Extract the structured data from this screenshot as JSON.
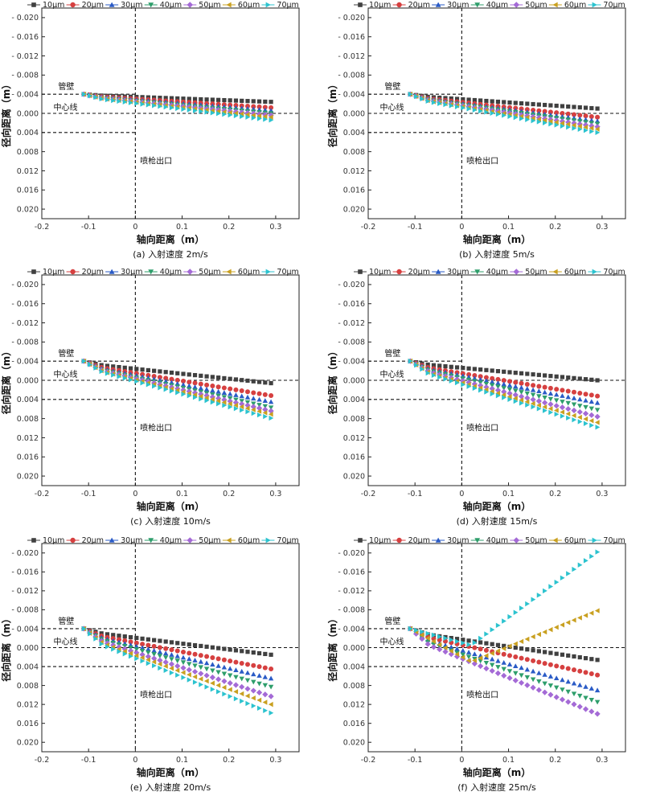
{
  "legend_labels": [
    "10μm",
    "20μm",
    "30μm",
    "40μm",
    "50μm",
    "60μm",
    "70μm"
  ],
  "series_colors": [
    "#404040",
    "#d64040",
    "#2a5bc6",
    "#2e9e6b",
    "#a46ad6",
    "#c9a020",
    "#2cc3cf"
  ],
  "series_markers": [
    "square",
    "circle",
    "triangle-up",
    "triangle-down",
    "diamond",
    "triangle-left",
    "triangle-right"
  ],
  "chart_data": [
    {
      "type": "scatter",
      "caption": "(a) 入射速度 2m/s",
      "xlabel": "轴向距离（m）",
      "ylabel": "径向距离（m）",
      "xlim": [
        -0.2,
        0.35
      ],
      "ylim": [
        -0.022,
        0.022
      ],
      "xticks": [
        -0.2,
        -0.1,
        0,
        0.1,
        0.2,
        0.3
      ],
      "xtick_labels": [
        "-0.2",
        "-0.1",
        "0",
        "0.1",
        "0.2",
        "0.3"
      ],
      "yticks": [
        -0.02,
        -0.016,
        -0.012,
        -0.008,
        -0.004,
        0.0,
        0.004,
        0.008,
        0.012,
        0.016,
        0.02
      ],
      "ytick_labels": [
        "- 0.020",
        "- 0.016",
        "- 0.012",
        "- 0.008",
        "- 0.004",
        "0.000",
        "0.004",
        "0.008",
        "0.012",
        "0.016",
        "0.020"
      ],
      "annotations": {
        "wall": "管壁",
        "centerline": "中心线",
        "nozzle_exit": "喷枪出口"
      },
      "wall_y": [
        -0.004,
        0.004
      ],
      "start": [
        -0.11,
        -0.004
      ],
      "series": [
        {
          "name": "10μm",
          "end_y": -0.0024
        },
        {
          "name": "20μm",
          "end_y": -0.0012
        },
        {
          "name": "30μm",
          "end_y": -0.0006
        },
        {
          "name": "40μm",
          "end_y": 0.0
        },
        {
          "name": "50μm",
          "end_y": 0.0004
        },
        {
          "name": "60μm",
          "end_y": 0.0008
        },
        {
          "name": "70μm",
          "end_y": 0.0014
        }
      ]
    },
    {
      "type": "scatter",
      "caption": "(b) 入射速度 5m/s",
      "xlabel": "轴向距离（m）",
      "ylabel": "径向距离（m）",
      "xlim": [
        -0.2,
        0.35
      ],
      "ylim": [
        -0.022,
        0.022
      ],
      "xticks": [
        -0.2,
        -0.1,
        0,
        0.1,
        0.2,
        0.3
      ],
      "xtick_labels": [
        "-0.2",
        "-0.1",
        "0",
        "0.1",
        "0.2",
        "0.3"
      ],
      "yticks": [
        -0.02,
        -0.016,
        -0.012,
        -0.008,
        -0.004,
        0.0,
        0.004,
        0.008,
        0.012,
        0.016,
        0.02
      ],
      "ytick_labels": [
        "- 0.020",
        "- 0.016",
        "- 0.012",
        "- 0.008",
        "- 0.004",
        "0.000",
        "0.004",
        "0.008",
        "0.012",
        "0.016",
        "0.020"
      ],
      "annotations": {
        "wall": "管壁",
        "centerline": "中心线",
        "nozzle_exit": "喷枪出口"
      },
      "wall_y": [
        -0.004,
        0.004
      ],
      "start": [
        -0.11,
        -0.004
      ],
      "series": [
        {
          "name": "10μm",
          "end_y": -0.001
        },
        {
          "name": "20μm",
          "end_y": 0.0008
        },
        {
          "name": "30μm",
          "end_y": 0.0016
        },
        {
          "name": "40μm",
          "end_y": 0.0022
        },
        {
          "name": "50μm",
          "end_y": 0.0028
        },
        {
          "name": "60μm",
          "end_y": 0.0033
        },
        {
          "name": "70μm",
          "end_y": 0.004
        }
      ]
    },
    {
      "type": "scatter",
      "caption": "(c) 入射速度 10m/s",
      "xlabel": "轴向距离（m）",
      "ylabel": "径向距离（m）",
      "xlim": [
        -0.2,
        0.35
      ],
      "ylim": [
        -0.022,
        0.022
      ],
      "xticks": [
        -0.2,
        -0.1,
        0,
        0.1,
        0.2,
        0.3
      ],
      "xtick_labels": [
        "-0.2",
        "-0.1",
        "0",
        "0.1",
        "0.2",
        "0.3"
      ],
      "yticks": [
        -0.02,
        -0.016,
        -0.012,
        -0.008,
        -0.004,
        0.0,
        0.004,
        0.008,
        0.012,
        0.016,
        0.02
      ],
      "ytick_labels": [
        "- 0.020",
        "- 0.016",
        "- 0.012",
        "- 0.008",
        "- 0.004",
        "0.000",
        "0.004",
        "0.008",
        "0.012",
        "0.016",
        "0.020"
      ],
      "annotations": {
        "wall": "管壁",
        "centerline": "中心线",
        "nozzle_exit": "喷枪出口"
      },
      "wall_y": [
        -0.004,
        0.004
      ],
      "start": [
        -0.11,
        -0.004
      ],
      "series": [
        {
          "name": "10μm",
          "end_y": 0.0006
        },
        {
          "name": "20μm",
          "end_y": 0.0032
        },
        {
          "name": "30μm",
          "end_y": 0.0045
        },
        {
          "name": "40μm",
          "end_y": 0.0057
        },
        {
          "name": "50μm",
          "end_y": 0.0064
        },
        {
          "name": "60μm",
          "end_y": 0.0071
        },
        {
          "name": "70μm",
          "end_y": 0.0079
        }
      ]
    },
    {
      "type": "scatter",
      "caption": "(d) 入射速度 15m/s",
      "xlabel": "轴向距离（m）",
      "ylabel": "径向距离（m）",
      "xlim": [
        -0.2,
        0.35
      ],
      "ylim": [
        -0.022,
        0.022
      ],
      "xticks": [
        -0.2,
        -0.1,
        0,
        0.1,
        0.2,
        0.3
      ],
      "xtick_labels": [
        "-0.2",
        "-0.1",
        "0",
        "0.1",
        "0.2",
        "0.3"
      ],
      "yticks": [
        -0.02,
        -0.016,
        -0.012,
        -0.008,
        -0.004,
        0.0,
        0.004,
        0.008,
        0.012,
        0.016,
        0.02
      ],
      "ytick_labels": [
        "- 0.020",
        "- 0.016",
        "- 0.012",
        "- 0.008",
        "- 0.004",
        "0.000",
        "0.004",
        "0.008",
        "0.012",
        "0.016",
        "0.020"
      ],
      "annotations": {
        "wall": "管壁",
        "centerline": "中心线",
        "nozzle_exit": "喷枪出口"
      },
      "wall_y": [
        -0.004,
        0.004
      ],
      "start": [
        -0.11,
        -0.004
      ],
      "series": [
        {
          "name": "10μm",
          "end_y": 0.0
        },
        {
          "name": "20μm",
          "end_y": 0.0033
        },
        {
          "name": "30μm",
          "end_y": 0.0047
        },
        {
          "name": "40μm",
          "end_y": 0.0062
        },
        {
          "name": "50μm",
          "end_y": 0.0076
        },
        {
          "name": "60μm",
          "end_y": 0.0088
        },
        {
          "name": "70μm",
          "end_y": 0.0098
        }
      ]
    },
    {
      "type": "scatter",
      "caption": "(e) 入射速度 20m/s",
      "xlabel": "轴向距离（m）",
      "ylabel": "径向距离（m）",
      "xlim": [
        -0.2,
        0.35
      ],
      "ylim": [
        -0.022,
        0.022
      ],
      "xticks": [
        -0.2,
        -0.1,
        0,
        0.1,
        0.2,
        0.3
      ],
      "xtick_labels": [
        "-0.2",
        "-0.1",
        "0",
        "0.1",
        "0.2",
        "0.3"
      ],
      "yticks": [
        -0.02,
        -0.016,
        -0.012,
        -0.008,
        -0.004,
        0.0,
        0.004,
        0.008,
        0.012,
        0.016,
        0.02
      ],
      "ytick_labels": [
        "- 0.020",
        "- 0.016",
        "- 0.012",
        "- 0.008",
        "- 0.004",
        "0.000",
        "0.004",
        "0.008",
        "0.012",
        "0.016",
        "0.020"
      ],
      "annotations": {
        "wall": "管壁",
        "centerline": "中心线",
        "nozzle_exit": "喷枪出口"
      },
      "wall_y": [
        -0.004,
        0.004
      ],
      "start": [
        -0.11,
        -0.004
      ],
      "series": [
        {
          "name": "10μm",
          "end_y": 0.0015
        },
        {
          "name": "20μm",
          "end_y": 0.0045
        },
        {
          "name": "30μm",
          "end_y": 0.0065
        },
        {
          "name": "40μm",
          "end_y": 0.0083
        },
        {
          "name": "50μm",
          "end_y": 0.0103
        },
        {
          "name": "60μm",
          "end_y": 0.012
        },
        {
          "name": "70μm",
          "end_y": 0.0138
        }
      ]
    },
    {
      "type": "scatter",
      "caption": "(f) 入射速度 25m/s",
      "xlabel": "轴向距离（m）",
      "ylabel": "径向距离（m）",
      "xlim": [
        -0.2,
        0.35
      ],
      "ylim": [
        -0.022,
        0.022
      ],
      "xticks": [
        -0.2,
        -0.1,
        0,
        0.1,
        0.2,
        0.3
      ],
      "xtick_labels": [
        "-0.2",
        "-0.1",
        "0",
        "0.1",
        "0.2",
        "0.3"
      ],
      "yticks": [
        -0.02,
        -0.016,
        -0.012,
        -0.008,
        -0.004,
        0.0,
        0.004,
        0.008,
        0.012,
        0.016,
        0.02
      ],
      "ytick_labels": [
        "- 0.020",
        "- 0.016",
        "- 0.012",
        "- 0.008",
        "- 0.004",
        "0.000",
        "0.004",
        "0.008",
        "0.012",
        "0.016",
        "0.020"
      ],
      "annotations": {
        "wall": "管壁",
        "centerline": "中心线",
        "nozzle_exit": "喷枪出口"
      },
      "wall_y": [
        -0.004,
        0.004
      ],
      "start": [
        -0.11,
        -0.004
      ],
      "series": [
        {
          "name": "10μm",
          "end_y": 0.0026
        },
        {
          "name": "20μm",
          "end_y": 0.0058
        },
        {
          "name": "30μm",
          "end_y": 0.009
        },
        {
          "name": "40μm",
          "end_y": 0.0115
        },
        {
          "name": "50μm",
          "end_y": 0.014
        },
        {
          "name": "60μm",
          "end_y": -0.0078,
          "mid": [
            0.02,
            0.003
          ]
        },
        {
          "name": "70μm",
          "end_y": -0.0202,
          "mid": [
            0.02,
            -0.0005
          ]
        }
      ]
    }
  ]
}
